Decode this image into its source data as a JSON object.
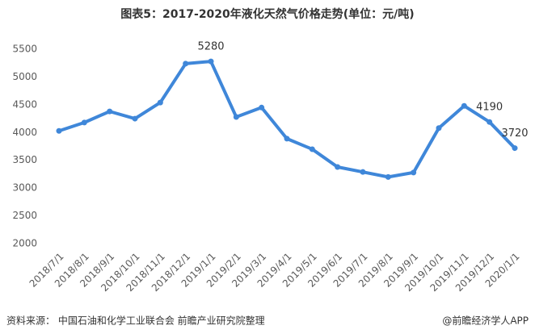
{
  "chart_data": {
    "type": "line",
    "title": "图表5：2017-2020年液化天然气价格走势(单位：元/吨)",
    "categories": [
      "2018/7/1",
      "2018/8/1",
      "2018/9/1",
      "2018/10/1",
      "2018/11/1",
      "2018/12/1",
      "2019/1/1",
      "2019/2/1",
      "2019/3/1",
      "2019/4/1",
      "2019/5/1",
      "2019/6/1",
      "2019/7/1",
      "2019/8/1",
      "2019/9/1",
      "2019/10/1",
      "2019/11/1",
      "2019/12/1",
      "2020/1/1"
    ],
    "series": [
      {
        "name": "液化天然气价格",
        "color": "#3f87d9",
        "values": [
          4030,
          4180,
          4380,
          4250,
          4540,
          5240,
          5280,
          4280,
          4450,
          3890,
          3700,
          3380,
          3290,
          3200,
          3280,
          4080,
          4480,
          4190,
          3720
        ]
      }
    ],
    "data_labels": [
      6,
      17,
      18
    ],
    "ylim": [
      2000,
      5500
    ],
    "yticks": [
      2000,
      2500,
      3000,
      3500,
      4000,
      4500,
      5000,
      5500
    ],
    "grid": false,
    "source": "资料来源： 中国石油和化学工业联合会 前瞻产业研究院整理",
    "brand": "@前瞻经济学人APP"
  }
}
